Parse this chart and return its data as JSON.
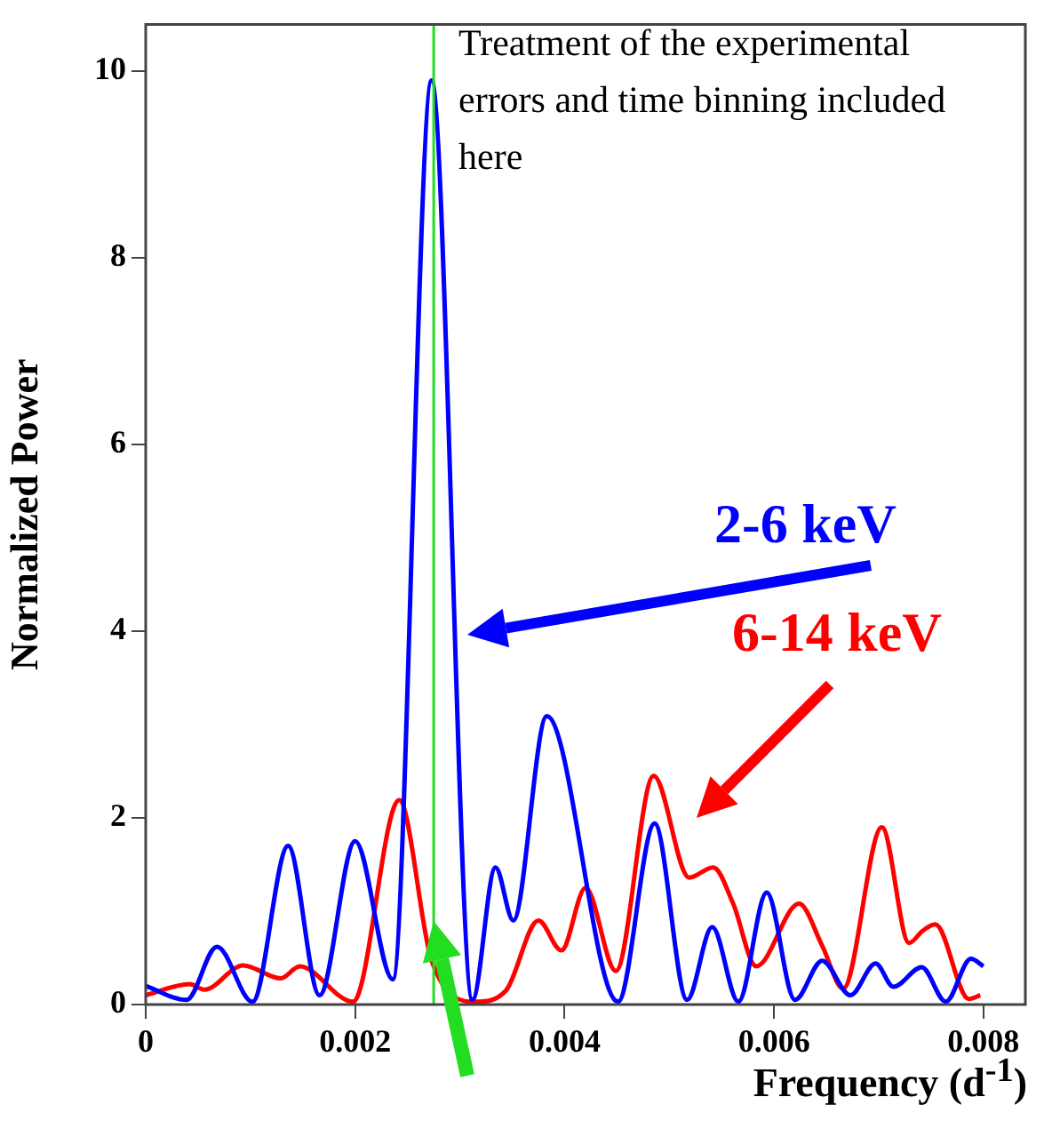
{
  "chart_data": {
    "type": "line",
    "xlabel": "Frequency (d$^{-1}$)",
    "ylabel": "Normalized Power",
    "xlim": [
      0,
      0.0084
    ],
    "xticks": [
      0,
      0.002,
      0.004,
      0.006,
      0.008
    ],
    "ylim": [
      0,
      10.5
    ],
    "yticks": [
      0,
      2,
      4,
      6,
      8,
      10
    ],
    "grid": false,
    "legend": false,
    "marker": "none",
    "line_style": "solid",
    "ref_lines": [
      {
        "axis": "x",
        "value": 0.00275,
        "color": "#22dd22"
      }
    ],
    "annotations": [
      "Treatment of the experimental errors and time binning included here"
    ],
    "series": [
      {
        "name": "2-6 keV",
        "color": "#0000ff",
        "x": [
          0,
          0.00039,
          0.00068,
          0.00102,
          0.00136,
          0.00166,
          0.002,
          0.00236,
          0.00273,
          0.00312,
          0.00334,
          0.00351,
          0.00383,
          0.00451,
          0.00486,
          0.00517,
          0.00541,
          0.00566,
          0.00593,
          0.0062,
          0.00646,
          0.00673,
          0.00697,
          0.00714,
          0.00741,
          0.00764,
          0.00788,
          0.008
        ],
        "values": [
          0.2,
          0.05,
          0.62,
          0.03,
          1.7,
          0.1,
          1.75,
          0.27,
          9.9,
          0.05,
          1.47,
          0.9,
          3.09,
          0.03,
          1.94,
          0.05,
          0.83,
          0.03,
          1.2,
          0.05,
          0.47,
          0.1,
          0.44,
          0.19,
          0.4,
          0.03,
          0.49,
          0.41
        ]
      },
      {
        "name": "6-14 keV",
        "color": "#ff0000",
        "x": [
          0,
          0.00042,
          0.00056,
          0.00093,
          0.00129,
          0.00147,
          0.00198,
          0.00242,
          0.00273,
          0.00315,
          0.00344,
          0.00375,
          0.00397,
          0.0042,
          0.00449,
          0.00485,
          0.00519,
          0.00542,
          0.00561,
          0.00583,
          0.00624,
          0.00646,
          0.00666,
          0.00703,
          0.00729,
          0.00742,
          0.00754,
          0.00786,
          0.00797
        ],
        "values": [
          0.1,
          0.22,
          0.16,
          0.42,
          0.28,
          0.41,
          0.03,
          2.19,
          0.47,
          0.03,
          0.15,
          0.9,
          0.58,
          1.25,
          0.36,
          2.45,
          1.36,
          1.47,
          1.08,
          0.41,
          1.08,
          0.63,
          0.17,
          1.9,
          0.66,
          0.79,
          0.86,
          0.06,
          0.1
        ]
      }
    ]
  }
}
